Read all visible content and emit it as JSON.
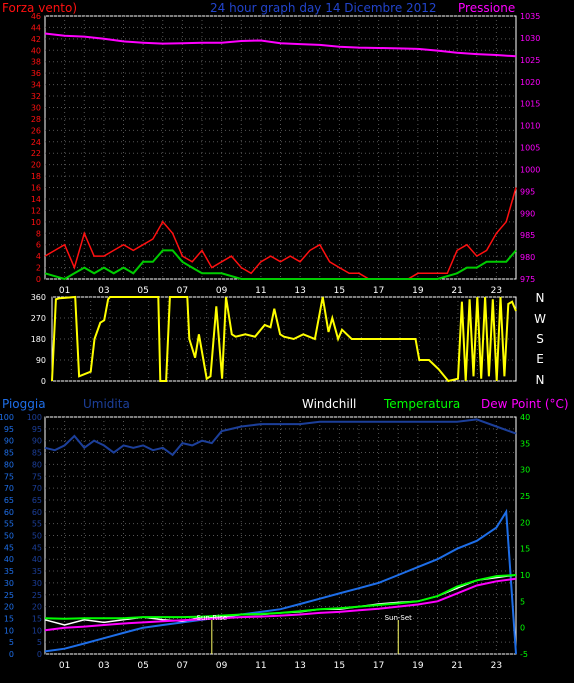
{
  "colors": {
    "background": "#000000",
    "grid": "#555555",
    "wind": "#ff1010",
    "wind_avg": "#00cc00",
    "pressure": "#ff00ff",
    "direction": "#ffff00",
    "rain": "#1e6ee8",
    "humidity": "#1c3f9a",
    "windchill": "#ffffff",
    "temperature": "#00ff00",
    "dewpoint": "#ff00ff",
    "frame": "#ffffff"
  },
  "header": {
    "wind_title": "Forza vento)",
    "graph_title": "24 hour graph day   14 Dicembre 2012",
    "pressure_title": "Pressione"
  },
  "x_ticks_top": [
    "01",
    "03",
    "05",
    "07",
    "09",
    "11",
    "13",
    "15",
    "17",
    "19",
    "21",
    "23"
  ],
  "x_ticks_bottom": [
    "01",
    "03",
    "05",
    "07",
    "09",
    "11",
    "13",
    "15",
    "17",
    "19",
    "21",
    "23"
  ],
  "compass_labels": [
    "N",
    "W",
    "S",
    "E",
    "N"
  ],
  "legend_bottom": {
    "rain": "Pioggia",
    "humidity": "Umidita",
    "windchill": "Windchill",
    "temperature": "Temperatura",
    "dewpoint": "Dew Point (°C)"
  },
  "sun_labels": {
    "rise": "Sun-Rise",
    "set": "Sun-Set"
  },
  "chart_data": [
    {
      "type": "line",
      "title": "Forza vento / Pressione",
      "x_range_hours": [
        0,
        24
      ],
      "y_left_ticks": [
        0,
        2,
        4,
        6,
        8,
        10,
        12,
        14,
        16,
        18,
        20,
        22,
        24,
        26,
        28,
        30,
        32,
        34,
        36,
        38,
        40,
        42,
        44,
        46
      ],
      "y_right_ticks": [
        975,
        980,
        985,
        990,
        995,
        1000,
        1005,
        1010,
        1015,
        1020,
        1025,
        1030,
        1035
      ],
      "ylim_left": [
        0,
        46
      ],
      "ylim_right": [
        975,
        1035
      ],
      "series": [
        {
          "name": "Forza vento",
          "x": [
            0,
            0.5,
            1,
            1.5,
            2,
            2.5,
            3,
            3.5,
            4,
            4.5,
            5,
            5.5,
            6,
            6.5,
            7,
            7.5,
            8,
            8.5,
            9,
            9.5,
            10,
            10.5,
            11,
            11.5,
            12,
            12.5,
            13,
            13.5,
            14,
            14.5,
            15,
            15.5,
            16,
            16.5,
            17,
            17.5,
            18,
            18.5,
            19,
            19.5,
            20,
            20.5,
            21,
            21.5,
            22,
            22.5,
            23,
            23.5,
            24
          ],
          "y": [
            4,
            5,
            6,
            2,
            8,
            4,
            4,
            5,
            6,
            5,
            6,
            7,
            10,
            8,
            4,
            3,
            5,
            2,
            3,
            4,
            2,
            1,
            3,
            4,
            3,
            4,
            3,
            5,
            6,
            3,
            2,
            1,
            1,
            0,
            0,
            0,
            0,
            0,
            1,
            1,
            1,
            1,
            5,
            6,
            4,
            5,
            8,
            10,
            16
          ]
        },
        {
          "name": "Media vento",
          "x": [
            0,
            1,
            1.5,
            2,
            2.5,
            3,
            3.5,
            4,
            4.5,
            5,
            5.5,
            6,
            6.5,
            7,
            7.5,
            8,
            9,
            10,
            11,
            12,
            13,
            14,
            15,
            16,
            17,
            18,
            19,
            20,
            21,
            21.5,
            22,
            22.5,
            23,
            23.5,
            24
          ],
          "y": [
            1,
            0,
            1,
            2,
            1,
            2,
            1,
            2,
            1,
            3,
            3,
            5,
            5,
            3,
            2,
            1,
            1,
            0,
            0,
            0,
            0,
            0,
            0,
            0,
            0,
            0,
            0,
            0,
            1,
            2,
            2,
            3,
            3,
            3,
            5
          ]
        },
        {
          "name": "Pressione",
          "x": [
            0,
            1,
            2,
            3,
            4,
            5,
            6,
            7,
            8,
            9,
            10,
            11,
            12,
            13,
            14,
            15,
            16,
            17,
            18,
            19,
            20,
            21,
            22,
            23,
            24
          ],
          "y": [
            1031,
            1030.5,
            1030.3,
            1029.8,
            1029.2,
            1028.9,
            1028.7,
            1028.8,
            1028.9,
            1028.9,
            1029.3,
            1029.4,
            1028.8,
            1028.6,
            1028.4,
            1028,
            1027.8,
            1027.7,
            1027.6,
            1027.5,
            1027.1,
            1026.6,
            1026.3,
            1026.1,
            1025.8
          ]
        }
      ]
    },
    {
      "type": "line",
      "title": "Direzione vento",
      "x_range_hours": [
        0,
        24
      ],
      "y_ticks": [
        0,
        90,
        180,
        270,
        360
      ],
      "ylim": [
        0,
        360
      ],
      "series": [
        {
          "name": "Direzione",
          "x": [
            0,
            0.2,
            0.4,
            1.2,
            1.4,
            2,
            2.2,
            2.5,
            2.7,
            2.9,
            3,
            5.5,
            5.6,
            5.9,
            6.1,
            7,
            7.1,
            7.4,
            7.6,
            8,
            8.2,
            8.5,
            8.8,
            9,
            9.3,
            9.5,
            10,
            10.5,
            11,
            11.3,
            11.5,
            11.8,
            12,
            12.5,
            13,
            13.3,
            13.6,
            14,
            14.3,
            14.5,
            14.8,
            15,
            15.5,
            16,
            17,
            18,
            18.8,
            19,
            19.5,
            20,
            20.5,
            21,
            21.2,
            21.4,
            21.6,
            21.8,
            22,
            22.2,
            22.4,
            22.6,
            22.8,
            23,
            23.2,
            23.4,
            23.6,
            23.8,
            24
          ],
          "y": [
            0,
            350,
            355,
            360,
            20,
            40,
            180,
            250,
            260,
            350,
            360,
            360,
            0,
            0,
            360,
            360,
            180,
            100,
            200,
            10,
            20,
            320,
            10,
            360,
            200,
            190,
            200,
            190,
            240,
            230,
            310,
            200,
            190,
            180,
            200,
            190,
            180,
            360,
            210,
            270,
            180,
            220,
            180,
            180,
            180,
            180,
            180,
            90,
            90,
            50,
            0,
            10,
            340,
            0,
            350,
            20,
            360,
            10,
            360,
            20,
            350,
            0,
            360,
            20,
            330,
            340,
            300
          ]
        }
      ]
    },
    {
      "type": "line",
      "title": "Pioggia / Umidita / Temperatura",
      "x_range_hours": [
        0,
        24
      ],
      "y_left_ticks": [
        0,
        5,
        10,
        15,
        20,
        25,
        30,
        35,
        40,
        45,
        50,
        55,
        60,
        65,
        70,
        75,
        80,
        85,
        90,
        95,
        100
      ],
      "y_right_ticks": [
        -5,
        0,
        5,
        10,
        15,
        20,
        25,
        30,
        35,
        40
      ],
      "ylim_left": [
        0,
        100
      ],
      "ylim_right": [
        -5,
        40
      ],
      "series": [
        {
          "name": "Pioggia",
          "x": [
            0,
            1,
            2,
            3,
            4,
            5,
            6,
            7,
            8,
            9,
            10,
            11,
            12,
            13,
            14,
            15,
            16,
            17,
            18,
            19,
            20,
            21,
            22,
            23,
            23.5,
            24
          ],
          "y": [
            -4.5,
            -4,
            -3,
            -2,
            -1,
            0,
            0.5,
            1,
            1.5,
            2,
            2.5,
            3,
            3.5,
            4.5,
            5.5,
            6.5,
            7.5,
            8.5,
            10,
            11.5,
            13,
            15,
            16.5,
            19,
            22,
            -5
          ]
        },
        {
          "name": "Umidita",
          "x": [
            0,
            0.5,
            1,
            1.5,
            2,
            2.5,
            3,
            3.5,
            4,
            4.5,
            5,
            5.5,
            6,
            6.5,
            7,
            7.5,
            8,
            8.5,
            9,
            9.5,
            10,
            11,
            12,
            13,
            14,
            15,
            16,
            17,
            18,
            19,
            20,
            21,
            22,
            23,
            24
          ],
          "y": [
            87,
            86,
            88,
            92,
            87,
            90,
            88,
            85,
            88,
            87,
            88,
            86,
            87,
            84,
            89,
            88,
            90,
            89,
            94,
            95,
            96,
            97,
            97,
            97,
            98,
            98,
            98,
            98,
            98,
            98,
            98,
            98,
            99,
            96,
            93
          ]
        },
        {
          "name": "Windchill",
          "x": [
            0,
            1,
            2,
            3,
            4,
            5,
            6,
            7,
            8,
            9,
            10,
            11,
            12,
            13,
            14,
            15,
            16,
            17,
            18,
            19,
            20,
            21,
            22,
            23,
            24
          ],
          "y": [
            1.5,
            0.5,
            1.5,
            1,
            1.5,
            2,
            1.5,
            1.2,
            2,
            2,
            2.5,
            2.5,
            2.8,
            3,
            3.5,
            3.5,
            4,
            4.5,
            4.8,
            5,
            6,
            7.5,
            9,
            9.5,
            10
          ]
        },
        {
          "name": "Temperatura",
          "x": [
            0,
            1,
            2,
            3,
            4,
            5,
            6,
            7,
            8,
            9,
            10,
            11,
            12,
            13,
            14,
            15,
            16,
            17,
            18,
            19,
            20,
            21,
            22,
            23,
            24
          ],
          "y": [
            1.8,
            1.7,
            1.8,
            1.8,
            1.8,
            2,
            2,
            2,
            2.1,
            2.3,
            2.5,
            2.6,
            2.8,
            3.1,
            3.5,
            3.7,
            4,
            4.3,
            4.6,
            5,
            6,
            7.8,
            9,
            9.8,
            10
          ]
        },
        {
          "name": "Dew Point",
          "x": [
            0,
            1,
            2,
            3,
            4,
            5,
            6,
            7,
            8,
            9,
            10,
            11,
            12,
            13,
            14,
            15,
            16,
            17,
            18,
            19,
            20,
            21,
            22,
            23,
            24
          ],
          "y": [
            -0.5,
            0,
            0.2,
            0.5,
            0.8,
            1,
            1.2,
            1.4,
            1.6,
            1.8,
            2,
            2.1,
            2.3,
            2.5,
            2.8,
            3,
            3.3,
            3.6,
            4,
            4.4,
            5,
            6.5,
            8,
            8.8,
            9.3
          ]
        }
      ],
      "annotations": [
        {
          "label": "Sun-Rise",
          "x": 8.5
        },
        {
          "label": "Sun-Set",
          "x": 18
        }
      ]
    }
  ]
}
